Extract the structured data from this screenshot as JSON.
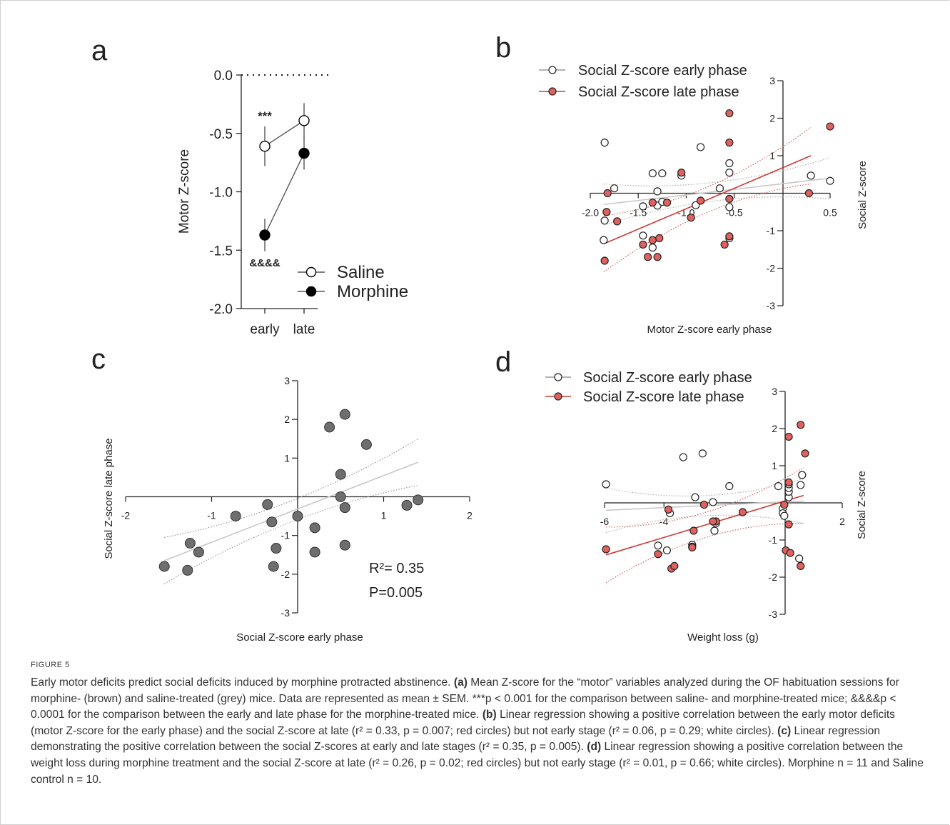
{
  "figure_label": "FIGURE 5",
  "caption": {
    "title": "Early motor deficits predict social deficits induced by morphine protracted abstinence.",
    "part_a_label": "(a)",
    "part_a_text": "Mean Z-score for the “motor” variables analyzed during the OF habituation sessions for morphine- (brown) and saline-treated (grey) mice. Data are represented as mean ± SEM. ***p < 0.001 for the comparison between saline- and morphine-treated mice; &&&&p < 0.0001 for the comparison between the early and late phase for the morphine-treated mice.",
    "part_b_label": "(b)",
    "part_b_text": "Linear regression showing a positive correlation between the early motor deficits (motor Z-score for the early phase) and the social Z-score at late (r² = 0.33, p = 0.007; red circles) but not early stage (r² = 0.06, p = 0.29; white circles).",
    "part_c_label": "(c)",
    "part_c_text": "Linear regression demonstrating the positive correlation between the social Z-scores at early and late stages (r² = 0.35, p = 0.005).",
    "part_d_label": "(d)",
    "part_d_text": "Linear regression showing a positive correlation between the weight loss during morphine treatment and the social Z-score at late (r² = 0.26, p = 0.02; red circles) but not early stage (r² = 0.01, p = 0.66; white circles). Morphine n = 11 and Saline control n = 10."
  },
  "colors": {
    "red_fill": "#e0625f",
    "grey_fill": "#6e6e6e",
    "regression_grey": "#c8c8c8",
    "regression_red": "#cc3b35",
    "axis": "#222222"
  },
  "chart_data": [
    {
      "panel": "a",
      "type": "line",
      "ylabel": "Motor Z-score",
      "categories": [
        "early",
        "late"
      ],
      "ylim": [
        -2.0,
        0.0
      ],
      "yticks": [
        "0.0",
        "-0.5",
        "-1.0",
        "-1.5",
        "-2.0"
      ],
      "series": [
        {
          "name": "Saline",
          "values": [
            -0.61,
            -0.39
          ],
          "sem": [
            0.17,
            0.15
          ],
          "fill": "open"
        },
        {
          "name": "Morphine",
          "values": [
            -1.37,
            -0.67
          ],
          "sem": [
            0.14,
            0.14
          ],
          "fill": "filled"
        }
      ],
      "annotations": [
        "***",
        "&&&&"
      ]
    },
    {
      "panel": "b",
      "type": "scatter",
      "xlabel": "Motor Z-score early phase",
      "ylabel": "Social Z-score",
      "xlim": [
        -2.0,
        0.5
      ],
      "ylim": [
        -3,
        3
      ],
      "xticks": [
        "-2.0",
        "-1.5",
        "-1.0",
        "-0.5",
        "0.5"
      ],
      "yticks": [
        "3",
        "2",
        "1",
        "-1",
        "-2",
        "-3"
      ],
      "series": [
        {
          "name": "Social Z-score early phase",
          "style": "open",
          "points": [
            [
              -1.85,
              1.35
            ],
            [
              -1.85,
              -0.73
            ],
            [
              -1.75,
              0.13
            ],
            [
              -1.86,
              -1.25
            ],
            [
              -1.45,
              -1.13
            ],
            [
              -1.45,
              -0.35
            ],
            [
              -1.3,
              -0.33
            ],
            [
              -1.35,
              0.53
            ],
            [
              -1.25,
              0.53
            ],
            [
              -1.3,
              0.05
            ],
            [
              -1.25,
              -0.23
            ],
            [
              -1.05,
              0.47
            ],
            [
              -1.35,
              -1.45
            ],
            [
              -0.9,
              -0.32
            ],
            [
              -0.85,
              1.23
            ],
            [
              -0.65,
              0.13
            ],
            [
              -0.55,
              0.8
            ],
            [
              -0.55,
              0.55
            ],
            [
              -0.55,
              -0.37
            ],
            [
              -0.55,
              -1.2
            ],
            [
              0.3,
              0.47
            ],
            [
              0.5,
              0.33
            ]
          ]
        },
        {
          "name": "Social Z-score late phase",
          "style": "filled",
          "points": [
            [
              -1.85,
              -1.8
            ],
            [
              -1.83,
              -0.5
            ],
            [
              -1.82,
              0.0
            ],
            [
              -1.72,
              -0.75
            ],
            [
              -1.45,
              -1.37
            ],
            [
              -1.35,
              -0.25
            ],
            [
              -1.35,
              -1.25
            ],
            [
              -1.28,
              -1.2
            ],
            [
              -1.3,
              -1.7
            ],
            [
              -1.4,
              -1.7
            ],
            [
              -1.2,
              -0.25
            ],
            [
              -1.05,
              0.55
            ],
            [
              -0.95,
              -0.65
            ],
            [
              -0.85,
              -0.2
            ],
            [
              -0.6,
              -1.37
            ],
            [
              -0.55,
              2.13
            ],
            [
              -0.55,
              1.35
            ],
            [
              -0.55,
              -0.15
            ],
            [
              -0.55,
              -1.15
            ],
            [
              0.28,
              0.0
            ],
            [
              0.5,
              1.78
            ]
          ]
        }
      ],
      "regressions": [
        {
          "series": "Social Z-score early phase",
          "x": [
            -1.86,
            0.5
          ],
          "y": [
            -0.3,
            0.4
          ]
        },
        {
          "series": "Social Z-score late phase",
          "x": [
            -1.86,
            0.3
          ],
          "y": [
            -1.35,
            1.0
          ]
        }
      ]
    },
    {
      "panel": "c",
      "type": "scatter",
      "xlabel": "Social Z-score early phase",
      "ylabel": "Social Z-score late phase",
      "xlim": [
        -2,
        2
      ],
      "ylim": [
        -3,
        3
      ],
      "xticks": [
        "-2",
        "-1",
        "1",
        "2"
      ],
      "yticks": [
        "3",
        "2",
        "1",
        "-1",
        "-2",
        "-3"
      ],
      "points": [
        [
          -1.55,
          -1.8
        ],
        [
          -1.28,
          -1.9
        ],
        [
          -1.25,
          -1.2
        ],
        [
          -1.15,
          -1.43
        ],
        [
          -0.72,
          -0.5
        ],
        [
          -0.35,
          -0.2
        ],
        [
          -0.3,
          -0.65
        ],
        [
          -0.25,
          -1.33
        ],
        [
          -0.28,
          -1.8
        ],
        [
          0.0,
          -0.5
        ],
        [
          0.2,
          -0.8
        ],
        [
          0.2,
          -1.43
        ],
        [
          0.37,
          1.8
        ],
        [
          0.5,
          0.58
        ],
        [
          0.5,
          0.0
        ],
        [
          0.55,
          -0.28
        ],
        [
          0.55,
          -1.25
        ],
        [
          0.55,
          2.13
        ],
        [
          0.8,
          1.35
        ],
        [
          1.27,
          -0.22
        ],
        [
          1.4,
          -0.08
        ]
      ],
      "regression": {
        "x": [
          -1.55,
          1.2
        ],
        "y": [
          -1.65,
          0.72
        ]
      },
      "annotations": [
        "R²= 0.35",
        "P=0.005"
      ]
    },
    {
      "panel": "d",
      "type": "scatter",
      "xlabel": "Weight loss (g)",
      "ylabel": "Social Z-score",
      "xlim": [
        -6,
        2
      ],
      "ylim": [
        -3,
        3
      ],
      "xticks": [
        "-6",
        "-4",
        "2"
      ],
      "yticks": [
        "3",
        "2",
        "1",
        "-1",
        "-2",
        "-3"
      ],
      "series": [
        {
          "name": "Social Z-score early phase",
          "style": "open",
          "points": [
            [
              -5.95,
              0.5
            ],
            [
              -4.2,
              -1.15
            ],
            [
              -3.9,
              -1.28
            ],
            [
              -3.8,
              -0.28
            ],
            [
              -3.35,
              1.23
            ],
            [
              -3.05,
              -1.13
            ],
            [
              -3.05,
              -1.18
            ],
            [
              -2.95,
              0.15
            ],
            [
              -2.7,
              1.33
            ],
            [
              -2.35,
              0.02
            ],
            [
              -2.25,
              -0.55
            ],
            [
              -2.3,
              -0.75
            ],
            [
              -1.8,
              0.45
            ],
            [
              -0.15,
              0.45
            ],
            [
              0.0,
              -0.15
            ],
            [
              0.0,
              -0.28
            ],
            [
              0.05,
              -0.35
            ],
            [
              0.2,
              0.15
            ],
            [
              0.2,
              0.3
            ],
            [
              0.2,
              0.4
            ],
            [
              0.2,
              0.5
            ],
            [
              0.6,
              0.48
            ],
            [
              0.65,
              0.75
            ],
            [
              0.55,
              -1.5
            ]
          ]
        },
        {
          "name": "Social Z-score late phase",
          "style": "filled",
          "points": [
            [
              -5.95,
              -1.25
            ],
            [
              -4.2,
              -1.38
            ],
            [
              -3.75,
              -1.77
            ],
            [
              -3.65,
              -1.7
            ],
            [
              -3.85,
              -0.18
            ],
            [
              -3.0,
              -0.75
            ],
            [
              -3.05,
              -1.2
            ],
            [
              -2.65,
              -0.05
            ],
            [
              -2.25,
              -0.5
            ],
            [
              -2.35,
              -0.5
            ],
            [
              -1.35,
              -0.25
            ],
            [
              0.05,
              -0.05
            ],
            [
              0.1,
              -1.28
            ],
            [
              0.2,
              -0.58
            ],
            [
              0.25,
              -1.35
            ],
            [
              0.2,
              1.78
            ],
            [
              0.6,
              2.1
            ],
            [
              0.6,
              -1.7
            ],
            [
              0.75,
              1.33
            ],
            [
              0.2,
              0.55
            ]
          ]
        }
      ],
      "regressions": [
        {
          "series": "Social Z-score early phase",
          "x": [
            -5.95,
            0.7
          ],
          "y": [
            -0.2,
            0.05
          ]
        },
        {
          "series": "Social Z-score late phase",
          "x": [
            -5.95,
            0.7
          ],
          "y": [
            -1.4,
            0.2
          ]
        }
      ]
    }
  ]
}
